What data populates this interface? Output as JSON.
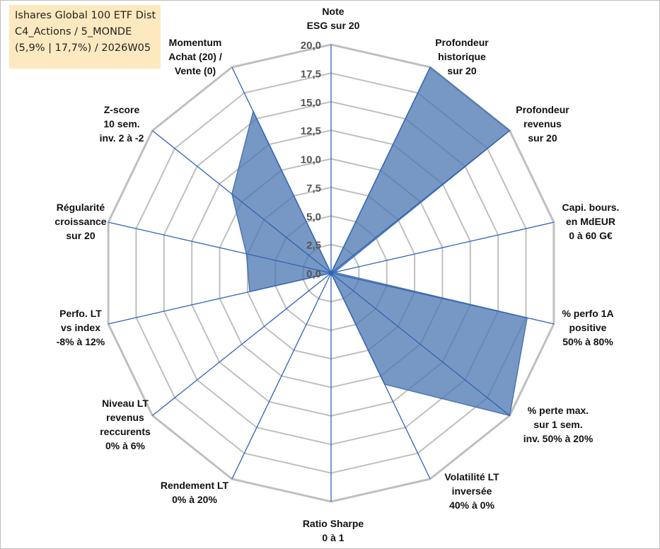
{
  "info_box": {
    "line1": "Ishares Global 100 ETF Dist",
    "line2": "C4_Actions / 5_MONDE",
    "line3": "(5,9% | 17,7%) / 2026W05"
  },
  "colors": {
    "fill": "#4a76b0",
    "axis": "#2e63b8",
    "grid": "#bfbfbf",
    "info_bg": "#fde9bf"
  },
  "chart_data": {
    "type": "radar",
    "r_range": [
      0,
      20
    ],
    "ticks": [
      "0,0",
      "2,5",
      "5,0",
      "7,5",
      "10,0",
      "12,5",
      "15,0",
      "17,5",
      "20,0"
    ],
    "axes": [
      {
        "label": [
          "Note",
          "ESG sur 20"
        ],
        "value": 0
      },
      {
        "label": [
          "Profondeur",
          "historique",
          "sur 20"
        ],
        "value": 20
      },
      {
        "label": [
          "Profondeur",
          "revenus",
          "sur 20"
        ],
        "value": 20
      },
      {
        "label": [
          "Capi. bours.",
          "en MdEUR",
          "0 à 60 G€"
        ],
        "value": 0.3
      },
      {
        "label": [
          "% perfo 1A",
          "positive",
          "50% à 80%"
        ],
        "value": 17.6
      },
      {
        "label": [
          "% perte max.",
          "sur 1 sem.",
          "inv. 50% à 20%"
        ],
        "value": 20
      },
      {
        "label": [
          "Volatilité LT",
          "inversée",
          "40% à 0%"
        ],
        "value": 10.8
      },
      {
        "label": [
          "Ratio Sharpe",
          "0 à 1"
        ],
        "value": 0
      },
      {
        "label": [
          "Rendement LT",
          "0% à 20%"
        ],
        "value": 0
      },
      {
        "label": [
          "Niveau LT",
          "revenus",
          "reccurents",
          "0% à 6%"
        ],
        "value": 0
      },
      {
        "label": [
          "Perfo. LT",
          "vs index",
          "-8% à 12%"
        ],
        "value": 7.3
      },
      {
        "label": [
          "Régularité",
          "croissance",
          "sur 20"
        ],
        "value": 7.6
      },
      {
        "label": [
          "Z-score",
          "10 sem.",
          "inv. 2 à -2"
        ],
        "value": 11.1
      },
      {
        "label": [
          "Momentum",
          "Achat (20) /",
          "Vente (0)"
        ],
        "value": 15.7
      }
    ]
  }
}
